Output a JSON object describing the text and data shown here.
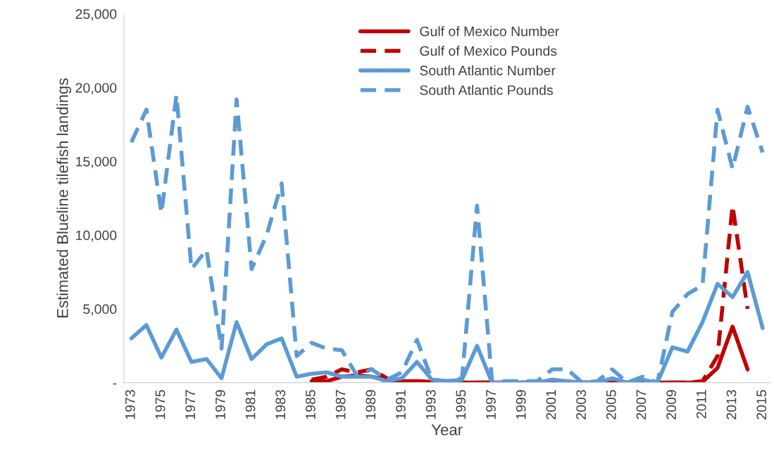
{
  "chart_data": {
    "type": "line",
    "xlabel": "Year",
    "ylabel": "Estimated Blueline tilefish landings",
    "categories": [
      "1973",
      null,
      "1975",
      null,
      "1977",
      null,
      "1979",
      null,
      "1981",
      null,
      "1983",
      null,
      "1985",
      null,
      "1987",
      null,
      "1989",
      null,
      "1991",
      null,
      "1993",
      null,
      "1995",
      null,
      "1997",
      null,
      "1999",
      null,
      "2001",
      null,
      "2003",
      null,
      "2005",
      null,
      "2007",
      null,
      "2009",
      null,
      "2011",
      null,
      "2013",
      null,
      "2015"
    ],
    "series": [
      {
        "name": "Gulf of Mexico Number",
        "color": "#c00000",
        "line_style": "solid",
        "values": [
          null,
          null,
          null,
          null,
          null,
          null,
          null,
          null,
          null,
          null,
          null,
          null,
          100,
          100,
          400,
          500,
          400,
          200,
          100,
          100,
          50,
          0,
          0,
          0,
          0,
          0,
          0,
          0,
          0,
          0,
          0,
          0,
          0,
          0,
          0,
          0,
          0,
          0,
          50,
          1000,
          3800,
          900,
          null
        ]
      },
      {
        "name": "Gulf of Mexico Pounds",
        "color": "#c00000",
        "line_style": "dashed",
        "values": [
          null,
          null,
          null,
          null,
          null,
          null,
          null,
          null,
          null,
          null,
          null,
          null,
          200,
          400,
          900,
          700,
          900,
          300,
          0,
          0,
          0,
          0,
          0,
          0,
          0,
          0,
          0,
          0,
          200,
          0,
          0,
          0,
          0,
          0,
          0,
          0,
          0,
          0,
          100,
          1800,
          12000,
          5000,
          null
        ]
      },
      {
        "name": "South Atlantic Number",
        "color": "#5b9bd5",
        "line_style": "solid",
        "values": [
          3000,
          3900,
          1700,
          3600,
          1400,
          1600,
          300,
          4100,
          1600,
          2600,
          3000,
          400,
          600,
          700,
          400,
          400,
          400,
          100,
          300,
          1400,
          200,
          100,
          200,
          2500,
          0,
          0,
          0,
          0,
          200,
          100,
          0,
          0,
          300,
          0,
          200,
          0,
          2400,
          2100,
          4100,
          6700,
          5800,
          7500,
          3700
        ]
      },
      {
        "name": "South Atlantic Pounds",
        "color": "#5b9bd5",
        "line_style": "dashed",
        "values": [
          16300,
          18500,
          11500,
          19500,
          7700,
          9000,
          2300,
          19200,
          7700,
          10000,
          13500,
          1800,
          2700,
          2300,
          2200,
          500,
          900,
          200,
          700,
          2900,
          200,
          100,
          300,
          12000,
          100,
          100,
          100,
          100,
          900,
          900,
          0,
          100,
          900,
          0,
          400,
          0,
          4800,
          6000,
          6600,
          18500,
          14500,
          18700,
          15600
        ]
      }
    ],
    "ylim": [
      0,
      25000
    ],
    "yticks": [
      {
        "value": 0,
        "label": "-"
      },
      {
        "value": 5000,
        "label": "5,000"
      },
      {
        "value": 10000,
        "label": "10,000"
      },
      {
        "value": 15000,
        "label": "15,000"
      },
      {
        "value": 20000,
        "label": "20,000"
      },
      {
        "value": 25000,
        "label": "25,000"
      }
    ],
    "grid": false,
    "legend": "top"
  }
}
